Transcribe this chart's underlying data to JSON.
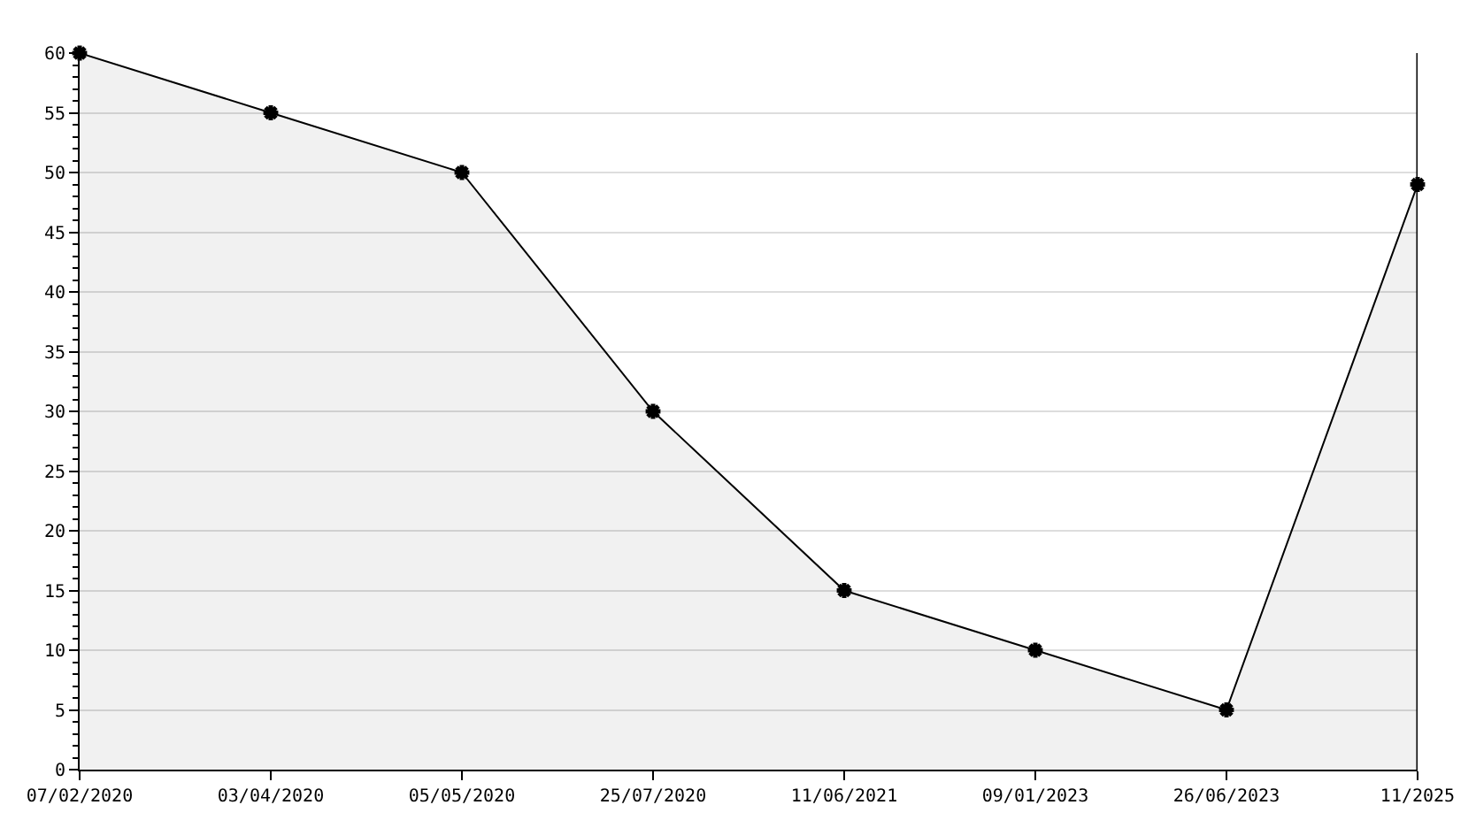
{
  "chart_data": {
    "type": "area",
    "categories": [
      "07/02/2020",
      "03/04/2020",
      "05/05/2020",
      "25/07/2020",
      "11/06/2021",
      "09/01/2023",
      "26/06/2023",
      "11/2025"
    ],
    "series": [
      {
        "color": "#000000",
        "values": [
          60,
          55,
          50,
          30,
          15,
          10,
          5,
          49
        ]
      }
    ],
    "ylim": [
      0,
      60
    ],
    "yticks": [
      0,
      5,
      10,
      15,
      20,
      25,
      30,
      35,
      40,
      45,
      50,
      55,
      60
    ],
    "grid": "y",
    "marker": "cross",
    "line_style": "solid"
  }
}
